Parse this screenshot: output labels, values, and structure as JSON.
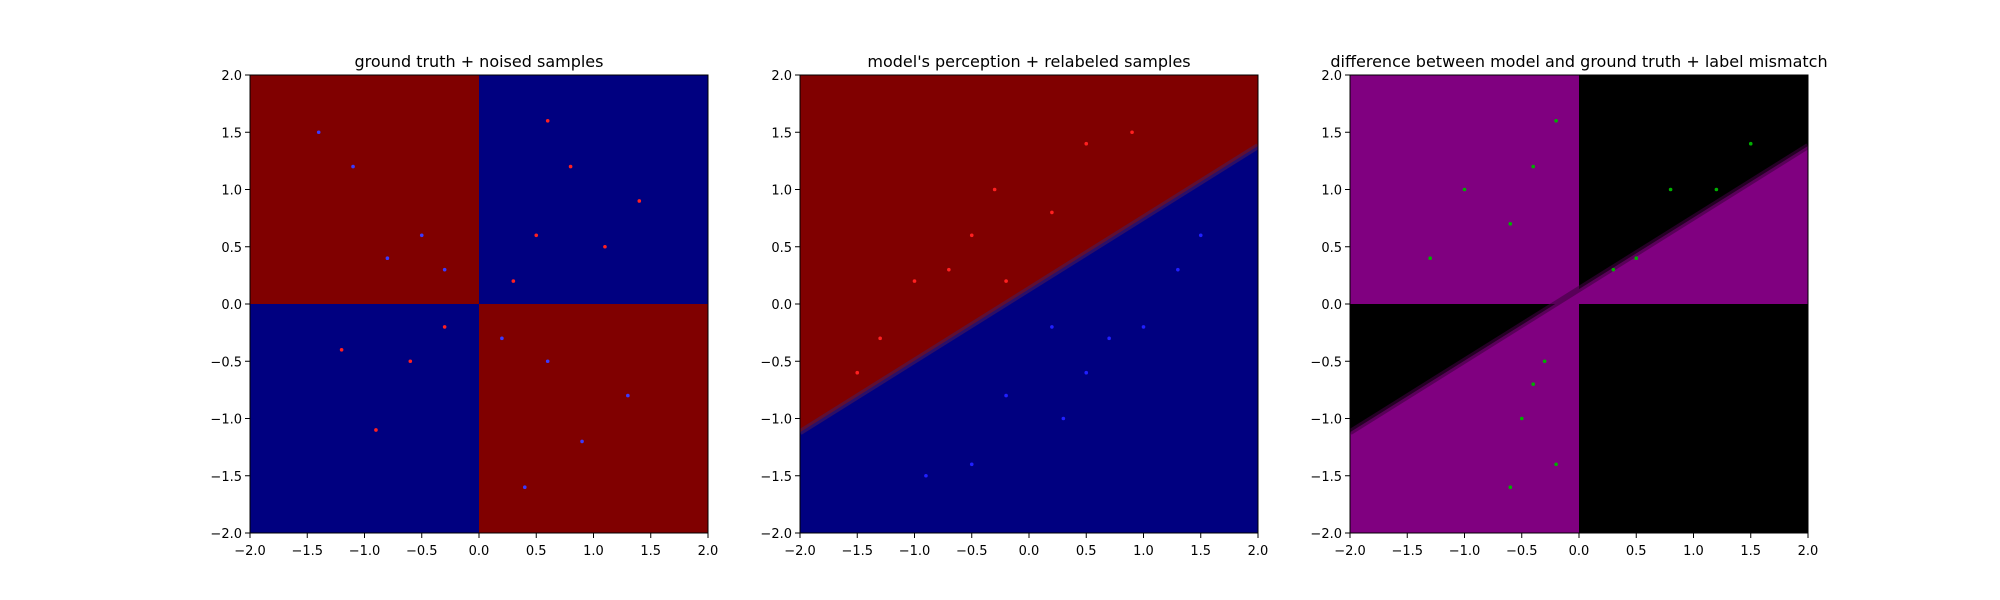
{
  "chart_data": [
    {
      "type": "scatter",
      "title": "ground truth + noised samples",
      "xlim": [
        -2.0,
        2.0
      ],
      "ylim": [
        -2.0,
        2.0
      ],
      "xticks": [
        "−2.0",
        "−1.5",
        "−1.0",
        "−0.5",
        "0.0",
        "0.5",
        "1.0",
        "1.5",
        "2.0"
      ],
      "yticks": [
        "−2.0",
        "−1.5",
        "−1.0",
        "−0.5",
        "0.0",
        "0.5",
        "1.0",
        "1.5",
        "2.0"
      ],
      "background": "XOR quadrants: red where x·y>0 is false... red in top-left and bottom-right, navy in top-right and bottom-left",
      "background_colors": {
        "region_a": "#800000",
        "region_b": "#000080"
      },
      "series": [
        {
          "color": "#ff2020",
          "points": [
            [
              0.5,
              0.6
            ],
            [
              0.8,
              1.2
            ],
            [
              0.3,
              0.2
            ],
            [
              1.1,
              0.5
            ],
            [
              -0.6,
              -0.5
            ],
            [
              -0.9,
              -1.1
            ],
            [
              -0.3,
              -0.2
            ],
            [
              0.6,
              1.6
            ],
            [
              -1.2,
              -0.4
            ],
            [
              1.4,
              0.9
            ]
          ]
        },
        {
          "color": "#3a3aff",
          "points": [
            [
              -0.5,
              0.6
            ],
            [
              -1.1,
              1.2
            ],
            [
              -0.3,
              0.3
            ],
            [
              0.6,
              -0.5
            ],
            [
              0.9,
              -1.2
            ],
            [
              0.2,
              -0.3
            ],
            [
              -0.8,
              0.4
            ],
            [
              1.3,
              -0.8
            ],
            [
              -1.4,
              1.5
            ],
            [
              0.4,
              -1.6
            ]
          ]
        }
      ]
    },
    {
      "type": "scatter",
      "title": "model's perception + relabeled samples",
      "xlim": [
        -2.0,
        2.0
      ],
      "ylim": [
        -2.0,
        2.0
      ],
      "xticks": [
        "−2.0",
        "−1.5",
        "−1.0",
        "−0.5",
        "0.0",
        "0.5",
        "1.0",
        "1.5",
        "2.0"
      ],
      "yticks": [
        "−2.0",
        "−1.5",
        "−1.0",
        "−0.5",
        "0.0",
        "0.5",
        "1.0",
        "1.5",
        "2.0"
      ],
      "background_colors": {
        "region_a": "#800000",
        "region_b": "#000080"
      },
      "boundary_line": {
        "x": [
          -2.0,
          2.0
        ],
        "y": [
          -1.12,
          1.38
        ]
      },
      "series": [
        {
          "color": "#ff2020",
          "points": [
            [
              -0.5,
              0.6
            ],
            [
              -1.0,
              0.2
            ],
            [
              -0.3,
              1.0
            ],
            [
              0.2,
              0.8
            ],
            [
              -1.3,
              -0.3
            ],
            [
              -0.7,
              0.3
            ],
            [
              0.5,
              1.4
            ],
            [
              -0.2,
              0.2
            ],
            [
              -1.5,
              -0.6
            ],
            [
              0.9,
              1.5
            ]
          ]
        },
        {
          "color": "#2020ff",
          "points": [
            [
              0.5,
              -0.6
            ],
            [
              1.0,
              -0.2
            ],
            [
              0.3,
              -1.0
            ],
            [
              -0.2,
              -0.8
            ],
            [
              1.3,
              0.3
            ],
            [
              0.7,
              -0.3
            ],
            [
              -0.5,
              -1.4
            ],
            [
              0.2,
              -0.2
            ],
            [
              1.5,
              0.6
            ],
            [
              -0.9,
              -1.5
            ]
          ]
        }
      ]
    },
    {
      "type": "scatter",
      "title": "difference between model and ground truth + label mismatch",
      "xlim": [
        -2.0,
        2.0
      ],
      "ylim": [
        -2.0,
        2.0
      ],
      "xticks": [
        "−2.0",
        "−1.5",
        "−1.0",
        "−0.5",
        "0.0",
        "0.5",
        "1.0",
        "1.5",
        "2.0"
      ],
      "yticks": [
        "−2.0",
        "−1.5",
        "−1.0",
        "−0.5",
        "0.0",
        "0.5",
        "1.0",
        "1.5",
        "2.0"
      ],
      "background_colors": {
        "mismatch": "#800080",
        "match": "#000000"
      },
      "boundary_line": {
        "x": [
          -2.0,
          2.0
        ],
        "y": [
          -1.12,
          1.38
        ]
      },
      "series": [
        {
          "color": "#00b000",
          "points": [
            [
              -0.6,
              0.7
            ],
            [
              -1.0,
              1.0
            ],
            [
              -0.4,
              1.2
            ],
            [
              -1.3,
              0.4
            ],
            [
              -0.2,
              1.6
            ],
            [
              0.5,
              0.4
            ],
            [
              0.8,
              1.0
            ],
            [
              1.2,
              1.0
            ],
            [
              0.3,
              0.3
            ],
            [
              1.5,
              1.4
            ],
            [
              -0.3,
              -0.5
            ],
            [
              -0.5,
              -1.0
            ],
            [
              -0.2,
              -1.4
            ],
            [
              -0.6,
              -1.6
            ],
            [
              -0.4,
              -0.7
            ]
          ]
        }
      ]
    }
  ]
}
